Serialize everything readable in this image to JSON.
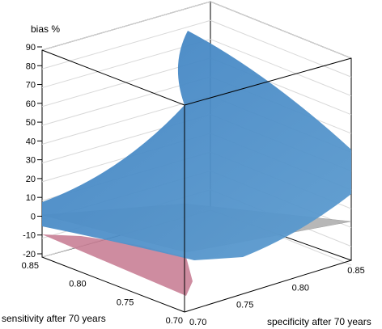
{
  "chart_data": {
    "type": "surface",
    "zlabel": "bias %",
    "xlabel": "sensitivity after 70 years",
    "ylabel": "specificity after 70 years",
    "zticks": [
      "90",
      "80",
      "70",
      "60",
      "50",
      "40",
      "30",
      "20",
      "10",
      "0",
      "-10",
      "-20"
    ],
    "xticks": [
      "0.85",
      "0.80",
      "0.75",
      "0.70"
    ],
    "yticks": [
      "0.85",
      "0.80",
      "0.75",
      "0.70"
    ],
    "zlim": [
      -20,
      90
    ],
    "sensitivity_range": [
      0.7,
      0.85
    ],
    "specificity_range": [
      0.7,
      0.85
    ],
    "surface_corners": [
      {
        "sensitivity": 0.85,
        "specificity": 0.85,
        "bias": -20
      },
      {
        "sensitivity": 0.85,
        "specificity": 0.7,
        "bias": 8
      },
      {
        "sensitivity": 0.7,
        "specificity": 0.7,
        "bias": 80
      },
      {
        "sensitivity": 0.7,
        "specificity": 0.85,
        "bias": 35
      }
    ],
    "reference_plane_bias": 0,
    "colors": {
      "surface_positive": "#4a8fc8",
      "surface_negative": "#c98096",
      "zero_plane": "#b0b0b0",
      "box": "#000000",
      "grid": "#d8d8d8"
    }
  }
}
